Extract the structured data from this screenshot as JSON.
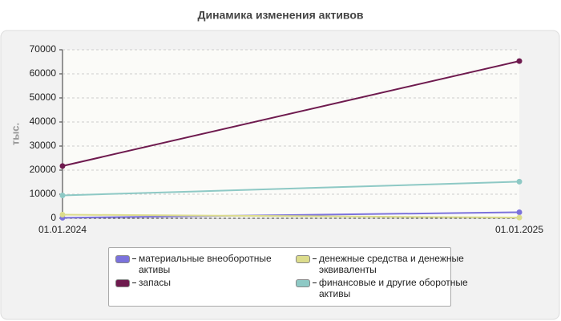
{
  "chart_data": {
    "type": "line",
    "title": "Динамика изменения активов",
    "y_label": "тыс.",
    "x": [
      "01.01.2024",
      "01.01.2025"
    ],
    "series": [
      {
        "name": "материальные внеоборотные активы",
        "color": "#7b72dc",
        "values": [
          200,
          2500
        ]
      },
      {
        "name": "запасы",
        "color": "#6e1a4e",
        "values": [
          21700,
          65300
        ]
      },
      {
        "name": "денежные средства и денежные эквиваленты",
        "color": "#dcdc8c",
        "values": [
          1500,
          300
        ]
      },
      {
        "name": "финансовые и другие оборотные активы",
        "color": "#8ec9c5",
        "values": [
          9500,
          15200
        ]
      }
    ],
    "ylim": [
      0,
      70000
    ],
    "yticks": [
      0,
      10000,
      20000,
      30000,
      40000,
      50000,
      60000,
      70000
    ],
    "grid": true
  }
}
